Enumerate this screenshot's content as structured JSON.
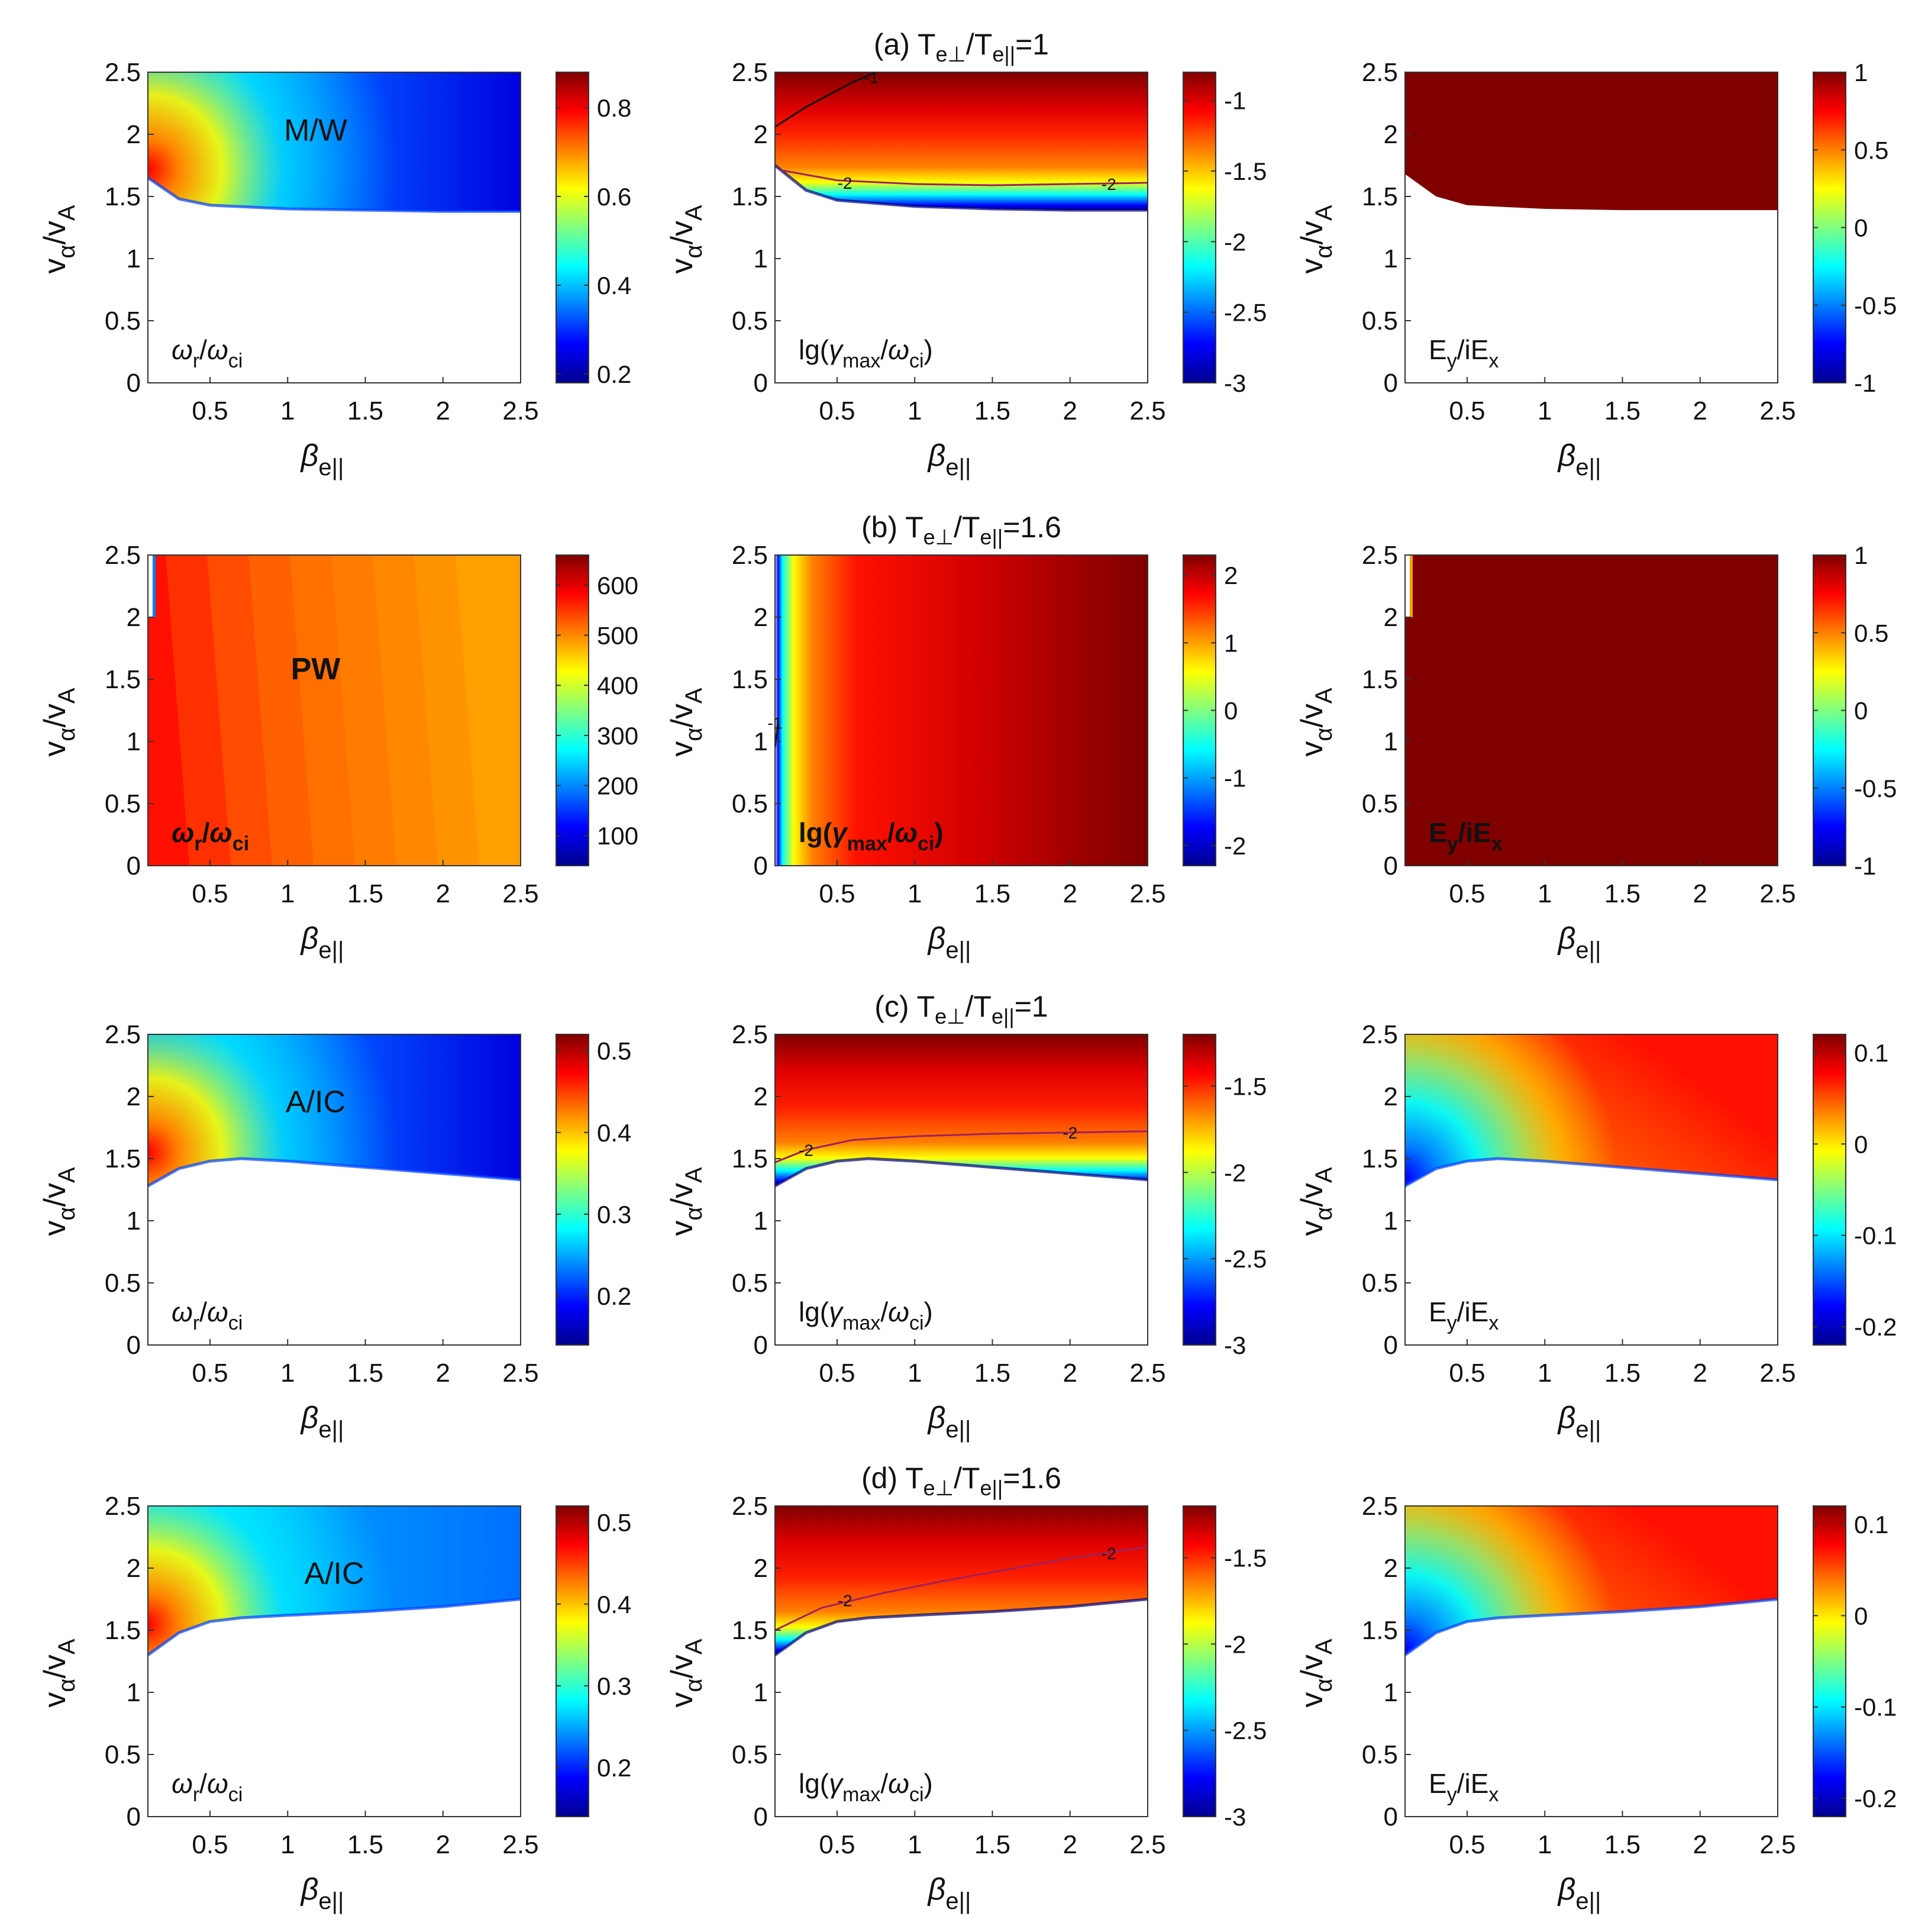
{
  "colormap": [
    "#00008f",
    "#0000ff",
    "#0080ff",
    "#00ffff",
    "#80ff80",
    "#ffff00",
    "#ff8000",
    "#ff0000",
    "#800000"
  ],
  "row_titles": [
    {
      "label": "(a)",
      "ratio": "=1"
    },
    {
      "label": "(b)",
      "ratio": "=1.6"
    },
    {
      "label": "(c)",
      "ratio": "=1"
    },
    {
      "label": "(d)",
      "ratio": "=1.6"
    }
  ],
  "axis_text": {
    "x_ticks": [
      "0.5",
      "1",
      "1.5",
      "2",
      "2.5"
    ],
    "y_ticks": [
      "0",
      "0.5",
      "1",
      "1.5",
      "2",
      "2.5"
    ],
    "panel_labels": {
      "omega": "ω",
      "gamma": "lg(γ",
      "ey": "E"
    }
  },
  "chart_data": [
    {
      "id": "a1",
      "type": "heatmap",
      "row": 0,
      "col": 0,
      "kind": "omega",
      "xlim": [
        0.1,
        2.5
      ],
      "ylim": [
        0,
        2.5
      ],
      "cbar_ticks": [
        "0.2",
        "0.4",
        "0.6",
        "0.8"
      ],
      "cbar_range": [
        0.18,
        0.88
      ],
      "boundary": [
        [
          0.1,
          1.65
        ],
        [
          0.3,
          1.48
        ],
        [
          0.5,
          1.43
        ],
        [
          1,
          1.4
        ],
        [
          1.5,
          1.39
        ],
        [
          2,
          1.38
        ],
        [
          2.5,
          1.38
        ]
      ],
      "text": "M/W",
      "text_white": false,
      "contours": [],
      "pattern": "ridge_low"
    },
    {
      "id": "a2",
      "type": "heatmap",
      "row": 0,
      "col": 1,
      "kind": "gamma",
      "xlim": [
        0.1,
        2.5
      ],
      "ylim": [
        0,
        2.5
      ],
      "cbar_ticks": [
        "-1",
        "-1.5",
        "-2",
        "-2.5",
        "-3"
      ],
      "cbar_range": [
        -3,
        -0.8
      ],
      "boundary": [
        [
          0.1,
          1.75
        ],
        [
          0.3,
          1.55
        ],
        [
          0.5,
          1.47
        ],
        [
          1,
          1.42
        ],
        [
          1.5,
          1.4
        ],
        [
          2,
          1.39
        ],
        [
          2.5,
          1.39
        ]
      ],
      "text": "",
      "text_white": false,
      "contours": [
        {
          "label": "-2",
          "points": [
            [
              0.1,
              1.72
            ],
            [
              0.5,
              1.63
            ],
            [
              1,
              1.6
            ],
            [
              1.5,
              1.59
            ],
            [
              2,
              1.6
            ],
            [
              2.5,
              1.61
            ]
          ],
          "labels_at": [
            [
              0.55,
              1.61
            ],
            [
              2.25,
              1.6
            ]
          ]
        },
        {
          "label": "-1",
          "points": [
            [
              0.1,
              2.06
            ],
            [
              0.3,
              2.22
            ],
            [
              0.6,
              2.42
            ],
            [
              0.75,
              2.5
            ]
          ],
          "labels_at": [
            [
              0.72,
              2.46
            ]
          ]
        }
      ],
      "pattern": "grad_up"
    },
    {
      "id": "a3",
      "type": "heatmap",
      "row": 0,
      "col": 2,
      "kind": "ey",
      "xlim": [
        0.1,
        2.5
      ],
      "ylim": [
        0,
        2.5
      ],
      "cbar_ticks": [
        "1",
        "0.5",
        "0",
        "-0.5",
        "-1"
      ],
      "cbar_range": [
        -1,
        1
      ],
      "boundary": [
        [
          0.1,
          1.68
        ],
        [
          0.3,
          1.5
        ],
        [
          0.5,
          1.43
        ],
        [
          1,
          1.4
        ],
        [
          1.5,
          1.39
        ],
        [
          2,
          1.39
        ],
        [
          2.5,
          1.39
        ]
      ],
      "text": "",
      "text_white": false,
      "contours": [],
      "pattern": "flat_max"
    },
    {
      "id": "b1",
      "type": "heatmap",
      "row": 1,
      "col": 0,
      "kind": "omega",
      "xlim": [
        0.1,
        2.5
      ],
      "ylim": [
        0,
        2.5
      ],
      "cbar_ticks": [
        "600",
        "500",
        "400",
        "300",
        "200",
        "100"
      ],
      "cbar_range": [
        40,
        660
      ],
      "boundary": [
        [
          0.1,
          0
        ],
        [
          2.5,
          0
        ]
      ],
      "text": "PW",
      "text_white": true,
      "contours": [],
      "pattern": "vstripe_omega"
    },
    {
      "id": "b2",
      "type": "heatmap",
      "row": 1,
      "col": 1,
      "kind": "gamma",
      "xlim": [
        0.1,
        2.5
      ],
      "ylim": [
        0,
        2.5
      ],
      "cbar_ticks": [
        "2",
        "1",
        "0",
        "-1",
        "-2"
      ],
      "cbar_range": [
        -2.3,
        2.3
      ],
      "boundary": [
        [
          0.1,
          0
        ],
        [
          2.5,
          0
        ]
      ],
      "text": "",
      "text_white": true,
      "contours": [
        {
          "label": "-1",
          "points": [
            [
              0.1,
              0.95
            ],
            [
              0.12,
              1.15
            ]
          ],
          "labels_at": [
            [
              0.1,
              1.15
            ]
          ]
        }
      ],
      "pattern": "vstripe_gamma"
    },
    {
      "id": "b3",
      "type": "heatmap",
      "row": 1,
      "col": 2,
      "kind": "ey",
      "xlim": [
        0.1,
        2.5
      ],
      "ylim": [
        0,
        2.5
      ],
      "cbar_ticks": [
        "1",
        "0.5",
        "0",
        "-0.5",
        "-1"
      ],
      "cbar_range": [
        -1,
        1
      ],
      "boundary": [
        [
          0.1,
          0
        ],
        [
          2.5,
          0
        ]
      ],
      "text": "",
      "text_white": true,
      "contours": [],
      "pattern": "flat_max"
    },
    {
      "id": "c1",
      "type": "heatmap",
      "row": 2,
      "col": 0,
      "kind": "omega",
      "xlim": [
        0.1,
        2.5
      ],
      "ylim": [
        0,
        2.5
      ],
      "cbar_ticks": [
        "0.5",
        "0.4",
        "0.3",
        "0.2"
      ],
      "cbar_range": [
        0.14,
        0.52
      ],
      "boundary": [
        [
          0.1,
          1.28
        ],
        [
          0.3,
          1.42
        ],
        [
          0.5,
          1.48
        ],
        [
          0.7,
          1.5
        ],
        [
          1,
          1.48
        ],
        [
          1.5,
          1.43
        ],
        [
          2,
          1.38
        ],
        [
          2.5,
          1.33
        ]
      ],
      "text": "A/IC",
      "text_white": false,
      "contours": [],
      "pattern": "ridge_low"
    },
    {
      "id": "c2",
      "type": "heatmap",
      "row": 2,
      "col": 1,
      "kind": "gamma",
      "xlim": [
        0.1,
        2.5
      ],
      "ylim": [
        0,
        2.5
      ],
      "cbar_ticks": [
        "-1.5",
        "-2",
        "-2.5",
        "-3"
      ],
      "cbar_range": [
        -3,
        -1.2
      ],
      "boundary": [
        [
          0.1,
          1.28
        ],
        [
          0.3,
          1.42
        ],
        [
          0.5,
          1.48
        ],
        [
          0.7,
          1.5
        ],
        [
          1,
          1.48
        ],
        [
          1.5,
          1.43
        ],
        [
          2,
          1.38
        ],
        [
          2.5,
          1.33
        ]
      ],
      "text": "",
      "text_white": false,
      "contours": [
        {
          "label": "-2",
          "points": [
            [
              0.1,
              1.47
            ],
            [
              0.3,
              1.57
            ],
            [
              0.6,
              1.65
            ],
            [
              1,
              1.68
            ],
            [
              1.5,
              1.7
            ],
            [
              2,
              1.71
            ],
            [
              2.5,
              1.72
            ]
          ],
          "labels_at": [
            [
              0.3,
              1.57
            ],
            [
              2,
              1.71
            ]
          ]
        }
      ],
      "pattern": "grad_up"
    },
    {
      "id": "c3",
      "type": "heatmap",
      "row": 2,
      "col": 2,
      "kind": "ey",
      "xlim": [
        0.1,
        2.5
      ],
      "ylim": [
        0,
        2.5
      ],
      "cbar_ticks": [
        "0.1",
        "0",
        "-0.1",
        "-0.2"
      ],
      "cbar_range": [
        -0.22,
        0.12
      ],
      "boundary": [
        [
          0.1,
          1.28
        ],
        [
          0.3,
          1.42
        ],
        [
          0.5,
          1.48
        ],
        [
          0.7,
          1.5
        ],
        [
          1,
          1.48
        ],
        [
          1.5,
          1.43
        ],
        [
          2,
          1.38
        ],
        [
          2.5,
          1.33
        ]
      ],
      "text": "",
      "text_white": false,
      "contours": [],
      "pattern": "ey_blue_corner"
    },
    {
      "id": "d1",
      "type": "heatmap",
      "row": 3,
      "col": 0,
      "kind": "omega",
      "xlim": [
        0.1,
        2.5
      ],
      "ylim": [
        0,
        2.5
      ],
      "cbar_ticks": [
        "0.5",
        "0.4",
        "0.3",
        "0.2"
      ],
      "cbar_range": [
        0.14,
        0.52
      ],
      "boundary": [
        [
          0.1,
          1.3
        ],
        [
          0.3,
          1.48
        ],
        [
          0.5,
          1.57
        ],
        [
          0.7,
          1.6
        ],
        [
          1,
          1.62
        ],
        [
          1.5,
          1.65
        ],
        [
          2,
          1.69
        ],
        [
          2.5,
          1.75
        ]
      ],
      "text": "A/IC",
      "text_white": false,
      "contours": [],
      "pattern": "ridge_low"
    },
    {
      "id": "d2",
      "type": "heatmap",
      "row": 3,
      "col": 1,
      "kind": "gamma",
      "xlim": [
        0.1,
        2.5
      ],
      "ylim": [
        0,
        2.5
      ],
      "cbar_ticks": [
        "-1.5",
        "-2",
        "-2.5",
        "-3"
      ],
      "cbar_range": [
        -3,
        -1.2
      ],
      "boundary": [
        [
          0.1,
          1.3
        ],
        [
          0.3,
          1.48
        ],
        [
          0.5,
          1.57
        ],
        [
          0.7,
          1.6
        ],
        [
          1,
          1.62
        ],
        [
          1.5,
          1.65
        ],
        [
          2,
          1.69
        ],
        [
          2.5,
          1.75
        ]
      ],
      "text": "",
      "text_white": false,
      "contours": [
        {
          "label": "-2",
          "points": [
            [
              0.1,
              1.5
            ],
            [
              0.4,
              1.68
            ],
            [
              0.8,
              1.8
            ],
            [
              1.2,
              1.9
            ],
            [
              1.6,
              1.99
            ],
            [
              2,
              2.08
            ],
            [
              2.5,
              2.17
            ]
          ],
          "labels_at": [
            [
              0.55,
              1.74
            ],
            [
              2.25,
              2.12
            ]
          ]
        }
      ],
      "pattern": "grad_up"
    },
    {
      "id": "d3",
      "type": "heatmap",
      "row": 3,
      "col": 2,
      "kind": "ey",
      "xlim": [
        0.1,
        2.5
      ],
      "ylim": [
        0,
        2.5
      ],
      "cbar_ticks": [
        "0.1",
        "0",
        "-0.1",
        "-0.2"
      ],
      "cbar_range": [
        -0.22,
        0.12
      ],
      "boundary": [
        [
          0.1,
          1.3
        ],
        [
          0.3,
          1.48
        ],
        [
          0.5,
          1.57
        ],
        [
          0.7,
          1.6
        ],
        [
          1,
          1.62
        ],
        [
          1.5,
          1.65
        ],
        [
          2,
          1.69
        ],
        [
          2.5,
          1.75
        ]
      ],
      "text": "",
      "text_white": false,
      "contours": [],
      "pattern": "ey_blue_corner"
    }
  ]
}
